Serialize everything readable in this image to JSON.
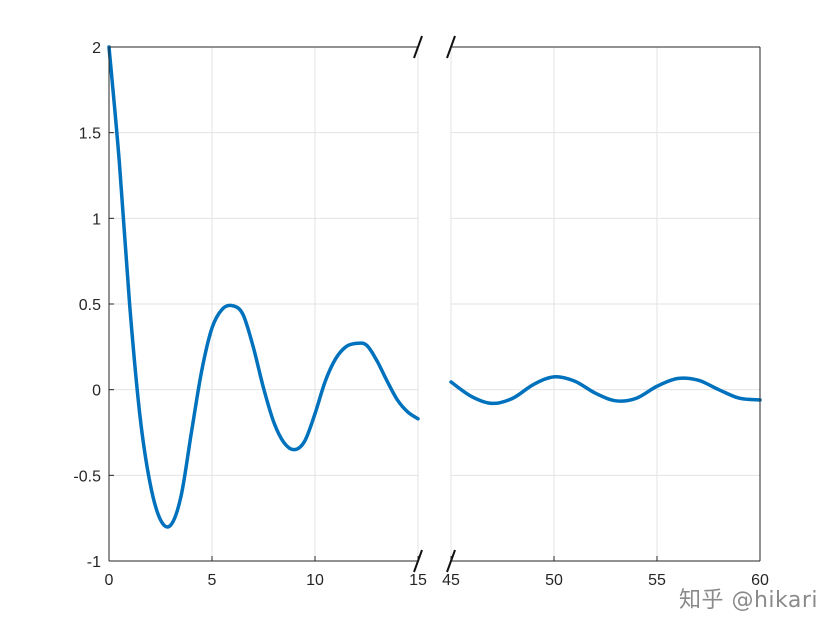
{
  "chart_data": {
    "type": "line",
    "title": "",
    "xlabel": "",
    "ylabel": "",
    "grid": true,
    "broken_x_axis": true,
    "y_ticks": [
      2,
      1.5,
      1,
      0.5,
      0,
      -0.5,
      -1
    ],
    "y_tick_labels": [
      "2",
      "1.5",
      "1",
      "0.5",
      "0",
      "-0.5",
      "-1"
    ],
    "ylim": [
      -1,
      2
    ],
    "segments": [
      {
        "xlim": [
          0,
          15
        ],
        "x_ticks": [
          0,
          5,
          10,
          15
        ],
        "x_tick_labels": [
          "0",
          "5",
          "10",
          "15"
        ]
      },
      {
        "xlim": [
          45,
          60
        ],
        "x_ticks": [
          45,
          50,
          55,
          60
        ],
        "x_tick_labels": [
          "45",
          "50",
          "55",
          "60"
        ]
      }
    ],
    "series": [
      {
        "color": "#0072BD",
        "segment_points": [
          {
            "x": [
              0,
              0.5,
              1,
              1.5,
              2,
              2.5,
              3,
              3.5,
              4,
              4.5,
              5,
              5.5,
              6,
              6.5,
              7,
              7.5,
              8,
              8.5,
              9,
              9.5,
              10,
              10.5,
              11,
              11.5,
              12,
              12.5,
              13,
              13.5,
              14,
              14.5,
              15
            ],
            "y": [
              2.0,
              1.33,
              0.5,
              -0.15,
              -0.55,
              -0.76,
              -0.79,
              -0.62,
              -0.25,
              0.11,
              0.36,
              0.47,
              0.49,
              0.44,
              0.25,
              0.01,
              -0.19,
              -0.31,
              -0.35,
              -0.3,
              -0.14,
              0.05,
              0.18,
              0.25,
              0.27,
              0.26,
              0.17,
              0.05,
              -0.06,
              -0.13,
              -0.17
            ]
          },
          {
            "x": [
              45,
              46,
              47,
              48,
              49,
              50,
              51,
              52,
              53,
              54,
              55,
              56,
              57,
              58,
              59,
              60
            ],
            "y": [
              0.045,
              -0.04,
              -0.08,
              -0.05,
              0.03,
              0.075,
              0.05,
              -0.02,
              -0.065,
              -0.05,
              0.02,
              0.065,
              0.055,
              0.0,
              -0.05,
              -0.06
            ]
          }
        ]
      }
    ]
  },
  "watermark": "知乎 @hikari"
}
